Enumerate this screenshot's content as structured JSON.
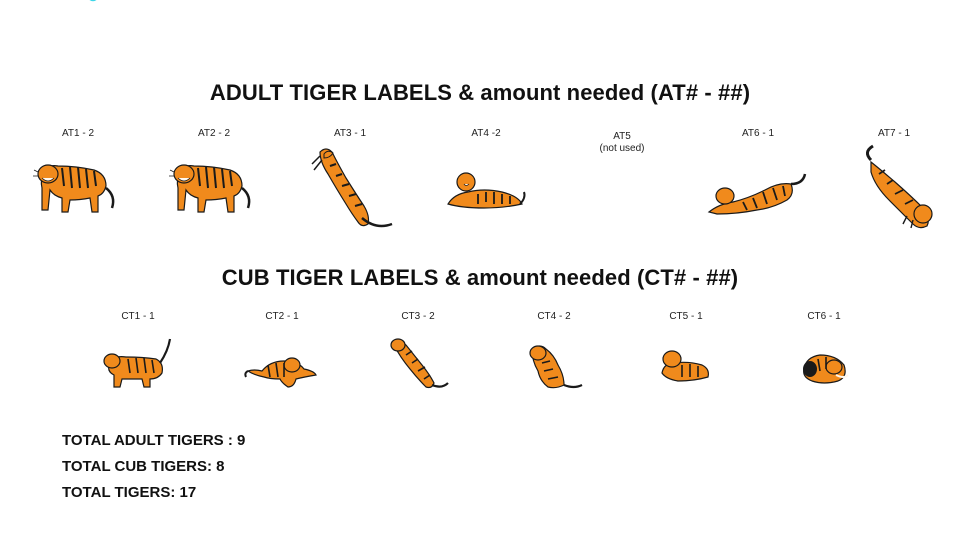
{
  "adult_section": {
    "title": "ADULT TIGER LABELS & amount needed (AT# - ##)",
    "items": [
      {
        "label": "AT1 - 2",
        "pose": "standing-tiger"
      },
      {
        "label": "AT2 - 2",
        "pose": "standing-tiger"
      },
      {
        "label": "AT3 - 1",
        "pose": "leaping-tiger"
      },
      {
        "label": "AT4 -2",
        "pose": "lying-tiger"
      },
      {
        "label": "AT5\n(not used)",
        "pose": "none"
      },
      {
        "label": "AT6  - 1",
        "pose": "stretching-tiger"
      },
      {
        "label": "AT7 - 1",
        "pose": "pouncing-tiger"
      }
    ]
  },
  "cub_section": {
    "title": "CUB TIGER LABELS & amount needed (CT# - ##)",
    "items": [
      {
        "label": "CT1 - 1",
        "pose": "walking-cub"
      },
      {
        "label": "CT2 - 1",
        "pose": "crouching-cub"
      },
      {
        "label": "CT3 - 2",
        "pose": "leaping-cub"
      },
      {
        "label": "CT4 - 2",
        "pose": "sitting-cub"
      },
      {
        "label": "CT5 - 1",
        "pose": "lying-cub"
      },
      {
        "label": "CT6 - 1",
        "pose": "curled-cub"
      }
    ]
  },
  "totals": {
    "adult": "TOTAL ADULT TIGERS : 9",
    "cub": "TOTAL CUB TIGERS: 8",
    "all": "TOTAL TIGERS: 17"
  },
  "colors": {
    "tiger_orange": "#F08A1C",
    "tiger_stripe": "#1A1A1A",
    "tiger_belly": "#FFF7EC",
    "corner_mark": "#3FD6E8"
  }
}
